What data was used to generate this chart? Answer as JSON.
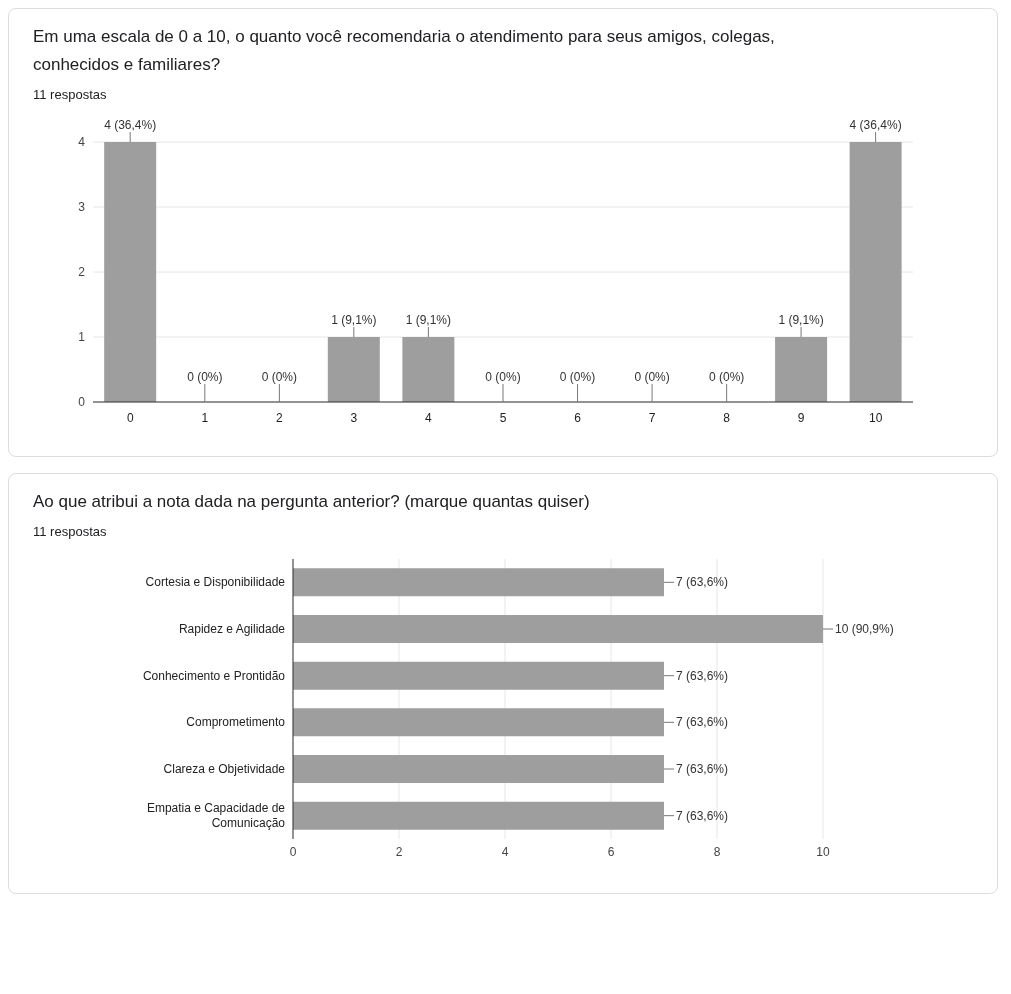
{
  "chart_data": [
    {
      "type": "bar",
      "title": "Em uma escala de 0 a 10, o quanto você recomendaria o atendimento para seus amigos, colegas, conhecidos e familiares?",
      "subtitle": "11 respostas",
      "categories": [
        "0",
        "1",
        "2",
        "3",
        "4",
        "5",
        "6",
        "7",
        "8",
        "9",
        "10"
      ],
      "values": [
        4,
        0,
        0,
        1,
        1,
        0,
        0,
        0,
        0,
        1,
        4
      ],
      "value_labels": [
        "4 (36,4%)",
        "0 (0%)",
        "0 (0%)",
        "1 (9,1%)",
        "1 (9,1%)",
        "0 (0%)",
        "0 (0%)",
        "0 (0%)",
        "0 (0%)",
        "1 (9,1%)",
        "4 (36,4%)"
      ],
      "color": "#9e9e9e",
      "ylim": [
        0,
        4
      ],
      "yticks": [
        0,
        1,
        2,
        3,
        4
      ],
      "grid": "y"
    },
    {
      "type": "bar",
      "orientation": "horizontal",
      "title": "Ao que atribui a nota dada na pergunta anterior? (marque quantas quiser)",
      "subtitle": "11 respostas",
      "categories": [
        "Cortesia e Disponibilidade",
        "Rapidez e Agilidade",
        "Conhecimento e Prontidão",
        "Comprometimento",
        "Clareza e Objetividade",
        "Empatia e Capacidade de Comunicação"
      ],
      "values": [
        7,
        10,
        7,
        7,
        7,
        7
      ],
      "value_labels": [
        "7 (63,6%)",
        "10 (90,9%)",
        "7 (63,6%)",
        "7 (63,6%)",
        "7 (63,6%)",
        "7 (63,6%)"
      ],
      "color": "#9e9e9e",
      "xlim": [
        0,
        10
      ],
      "xticks": [
        0,
        2,
        4,
        6,
        8,
        10
      ],
      "grid": "x"
    }
  ]
}
